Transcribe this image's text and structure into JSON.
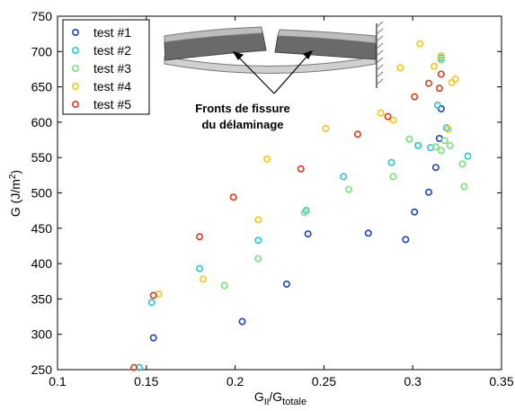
{
  "chart_data": {
    "type": "scatter",
    "xlim": [
      0.1,
      0.35
    ],
    "ylim": [
      250,
      750
    ],
    "x_ticks": [
      "0.1",
      "0.15",
      "0.2",
      "0.25",
      "0.3",
      "0.35"
    ],
    "y_ticks": [
      "250",
      "300",
      "350",
      "400",
      "450",
      "500",
      "550",
      "600",
      "650",
      "700",
      "750"
    ],
    "xlabel": {
      "base": "G",
      "sub1": "II",
      "mid": "/G",
      "sub2": "totale"
    },
    "ylabel": {
      "prefix": "G (J/m",
      "sup": "2",
      "suffix": ")"
    },
    "grid": false,
    "legend_position": "top-left",
    "annotation": {
      "line1": "Fronts de fissure",
      "line2": "du délaminage"
    },
    "series": [
      {
        "name": "test #1",
        "color": "#1f3fc8",
        "x": [
          0.154,
          0.204,
          0.229,
          0.241,
          0.275,
          0.296,
          0.301,
          0.309,
          0.313,
          0.315,
          0.316
        ],
        "y": [
          295,
          318,
          371,
          442,
          443,
          434,
          473,
          501,
          536,
          577,
          619
        ]
      },
      {
        "name": "test #2",
        "color": "#22c8d8",
        "x": [
          0.146,
          0.153,
          0.18,
          0.213,
          0.24,
          0.261,
          0.288,
          0.303,
          0.31,
          0.314,
          0.316,
          0.319,
          0.331
        ],
        "y": [
          253,
          345,
          393,
          433,
          475,
          523,
          543,
          567,
          564,
          624,
          691,
          592,
          552
        ]
      },
      {
        "name": "test #3",
        "color": "#7ae07a",
        "x": [
          0.194,
          0.213,
          0.239,
          0.264,
          0.289,
          0.298,
          0.313,
          0.316,
          0.318,
          0.321,
          0.328,
          0.329,
          0.316
        ],
        "y": [
          369,
          407,
          472,
          505,
          523,
          576,
          565,
          560,
          574,
          567,
          541,
          509,
          688
        ]
      },
      {
        "name": "test #4",
        "color": "#f0c814",
        "x": [
          0.157,
          0.182,
          0.213,
          0.218,
          0.251,
          0.282,
          0.289,
          0.293,
          0.304,
          0.312,
          0.316,
          0.32,
          0.322,
          0.324
        ],
        "y": [
          357,
          378,
          462,
          548,
          591,
          613,
          603,
          677,
          711,
          679,
          694,
          590,
          656,
          661
        ]
      },
      {
        "name": "test #5",
        "color": "#e03a1a",
        "x": [
          0.143,
          0.154,
          0.18,
          0.199,
          0.237,
          0.269,
          0.286,
          0.301,
          0.309,
          0.315,
          0.316
        ],
        "y": [
          253,
          355,
          438,
          494,
          534,
          583,
          608,
          636,
          655,
          648,
          668
        ]
      }
    ]
  }
}
